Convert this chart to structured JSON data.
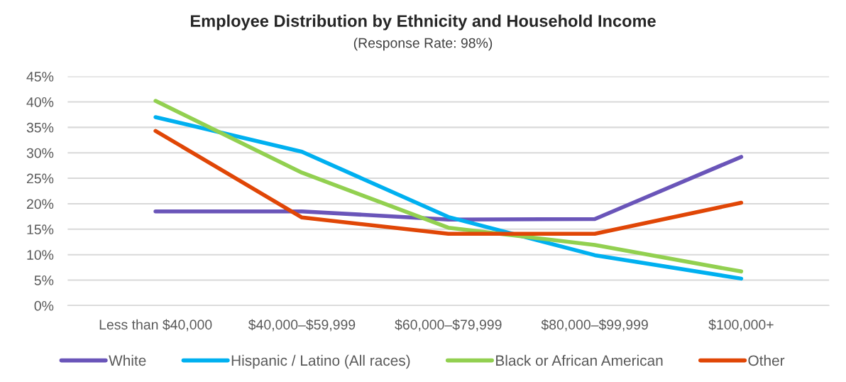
{
  "chart_data": {
    "type": "line",
    "title": "Employee Distribution by Ethnicity and Household Income",
    "subtitle": "(Response Rate: 98%)",
    "categories": [
      "Less than $40,000",
      "$40,000–$59,999",
      "$60,000–$79,999",
      "$80,000–$99,999",
      "$100,000+"
    ],
    "series": [
      {
        "name": "White",
        "color": "#6a55b9",
        "values": [
          18.5,
          18.5,
          16.9,
          17.0,
          29.2
        ]
      },
      {
        "name": "Hispanic / Latino (All races)",
        "color": "#00b0f0",
        "values": [
          37.0,
          30.2,
          17.4,
          9.9,
          5.3
        ]
      },
      {
        "name": "Black or African American",
        "color": "#92d050",
        "values": [
          40.2,
          26.1,
          15.3,
          11.9,
          6.7
        ]
      },
      {
        "name": "Other",
        "color": "#e04606",
        "values": [
          34.3,
          17.3,
          14.1,
          14.1,
          20.2
        ]
      }
    ],
    "ylim": [
      0,
      45
    ],
    "yticks": [
      {
        "value": 0,
        "label": "0%"
      },
      {
        "value": 5,
        "label": "5%"
      },
      {
        "value": 10,
        "label": "10%"
      },
      {
        "value": 15,
        "label": "15%"
      },
      {
        "value": 20,
        "label": "20%"
      },
      {
        "value": 25,
        "label": "25%"
      },
      {
        "value": 30,
        "label": "30%"
      },
      {
        "value": 35,
        "label": "35%"
      },
      {
        "value": 40,
        "label": "40%"
      },
      {
        "value": 45,
        "label": "45%"
      }
    ],
    "grid": "y",
    "legend": "bottom",
    "marker": "none",
    "line_style": "solid"
  }
}
